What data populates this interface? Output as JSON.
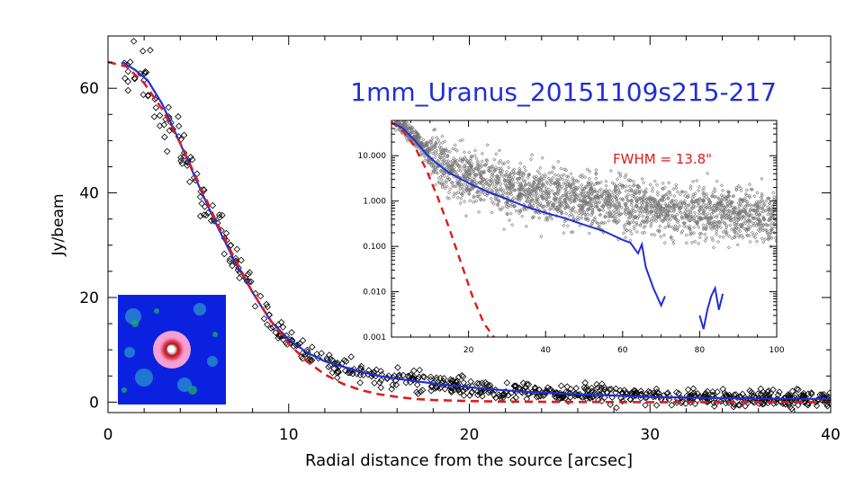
{
  "chart_data": [
    {
      "type": "scatter",
      "title": "1mm_Uranus_20151109s215-217",
      "xlabel": "Radial distance from the source [arcsec]",
      "ylabel": "Jy/beam",
      "xlim": [
        0,
        40
      ],
      "ylim": [
        -2,
        70
      ],
      "xticks": [
        0,
        10,
        20,
        30,
        40
      ],
      "yticks": [
        0,
        20,
        40,
        60
      ],
      "colors": {
        "points": "#000000",
        "profile": "#1f2fd6",
        "gaussian": "#e01b1b",
        "title": "#1f2fd6"
      },
      "series": [
        {
          "style": "blue-solid-line",
          "x": [
            0.8,
            1.5,
            2.2,
            3.0,
            3.8,
            4.5,
            5.2,
            6.0,
            7.0,
            8.0,
            9.0,
            10.0,
            11.0,
            12.0,
            13.0,
            14.0,
            15.0,
            17.0,
            19.0,
            21.0,
            23.0,
            26.0,
            30.0,
            35.0,
            40.0
          ],
          "y": [
            65,
            63.5,
            61.5,
            57,
            51,
            45.5,
            40,
            34,
            27,
            21,
            15.5,
            12,
            9.5,
            7.8,
            6.8,
            5.8,
            5.0,
            4.0,
            3.2,
            2.5,
            2.0,
            1.5,
            1.0,
            0.7,
            0.6
          ]
        },
        {
          "style": "red-dashed-line",
          "x": [
            0,
            1,
            2,
            3,
            4,
            5,
            6,
            7,
            8,
            9,
            10,
            11,
            12,
            13,
            14,
            15,
            16,
            17,
            18,
            20,
            22,
            25,
            30,
            35,
            40
          ],
          "y": [
            65,
            64.2,
            61,
            56,
            49.5,
            42,
            34.5,
            27.5,
            21,
            15.6,
            11.2,
            7.8,
            5.3,
            3.5,
            2.3,
            1.5,
            1.0,
            0.6,
            0.4,
            0.2,
            0.1,
            0.05,
            0,
            0,
            0
          ]
        }
      ]
    },
    {
      "type": "scatter",
      "annotation": "FWHM = 13.8\"",
      "xlim": [
        0,
        100
      ],
      "ylim": [
        0.001,
        60
      ],
      "yscale": "log",
      "xticks": [
        20,
        40,
        60,
        80,
        100
      ],
      "yticks": [
        0.001,
        0.01,
        0.1,
        1,
        10
      ],
      "ytick_labels": [
        "0.001",
        "0.010",
        "0.100",
        "1.000",
        "10.000"
      ],
      "colors": {
        "points": "#777777",
        "profile": "#1f2fd6",
        "gaussian": "#e01b1b"
      },
      "series": [
        {
          "style": "blue-solid-line",
          "x": [
            0,
            3,
            6,
            9,
            12,
            15,
            20,
            25,
            30,
            35,
            40,
            45,
            50,
            55,
            60,
            62,
            64,
            65,
            66,
            68,
            70,
            71
          ],
          "y": [
            55,
            40,
            22,
            11,
            6.5,
            4.2,
            2.5,
            1.6,
            1.1,
            0.75,
            0.55,
            0.42,
            0.3,
            0.22,
            0.14,
            0.12,
            0.07,
            0.11,
            0.035,
            0.012,
            0.005,
            0.008
          ]
        },
        {
          "style": "blue-solid-line",
          "x": [
            80,
            81,
            82,
            83,
            84,
            85,
            86
          ],
          "y": [
            0.003,
            0.0015,
            0.004,
            0.008,
            0.012,
            0.004,
            0.009
          ]
        },
        {
          "style": "red-dashed-line",
          "x": [
            0,
            3,
            6,
            9,
            12,
            15,
            18,
            21,
            24,
            27
          ],
          "y": [
            55,
            35,
            16,
            5,
            1.2,
            0.25,
            0.045,
            0.008,
            0.002,
            0.0009
          ]
        }
      ]
    }
  ]
}
